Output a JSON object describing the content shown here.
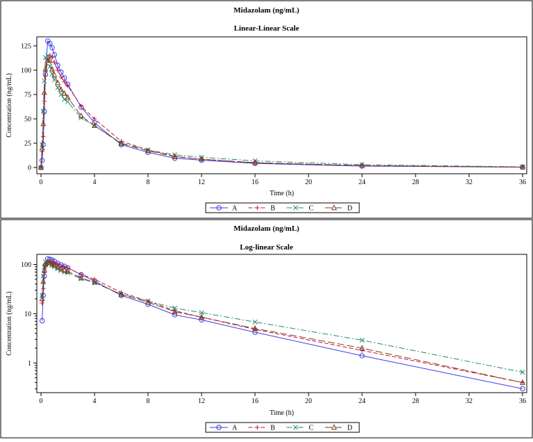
{
  "colors": {
    "A": "#3c3ce6",
    "B": "#c8102e",
    "C": "#1f8a70",
    "D": "#7a3b1a"
  },
  "chart_data": [
    {
      "type": "line",
      "title": "Midazolam (ng/mL)",
      "subtitle": "Linear-Linear Scale",
      "xlabel": "Time (h)",
      "ylabel": "Concentration (ng/mL)",
      "xscale": "linear",
      "yscale": "linear",
      "xlim": [
        0,
        36
      ],
      "ylim": [
        0,
        130
      ],
      "xticks": [
        0,
        4,
        8,
        12,
        16,
        20,
        24,
        28,
        32,
        36
      ],
      "yticks": [
        0,
        25,
        50,
        75,
        100,
        125
      ],
      "grid": false,
      "legend": "bottom-center",
      "series": [
        {
          "name": "A",
          "marker": "circle",
          "line": "solid",
          "x": [
            0,
            0.083,
            0.167,
            0.25,
            0.333,
            0.5,
            0.667,
            0.833,
            1,
            1.25,
            1.5,
            1.75,
            2,
            3,
            4,
            6,
            8,
            10,
            12,
            16,
            24,
            36
          ],
          "y": [
            0,
            7.2,
            23.5,
            57.5,
            96,
            130,
            127.5,
            123,
            116,
            105,
            98,
            92,
            85.5,
            62,
            46,
            23.4,
            15.5,
            9.5,
            7.5,
            4.2,
            1.4,
            0.3
          ]
        },
        {
          "name": "B",
          "marker": "plus",
          "line": "dash",
          "x": [
            0,
            0.083,
            0.167,
            0.25,
            0.333,
            0.5,
            0.667,
            0.833,
            1,
            1.25,
            1.5,
            1.75,
            2,
            3,
            4,
            6,
            8,
            10,
            12,
            16,
            24,
            36
          ],
          "y": [
            0,
            16.5,
            32,
            68,
            94,
            110,
            115,
            113,
            108,
            100,
            93,
            88,
            84,
            63,
            50,
            27,
            18,
            11.5,
            8.5,
            4.8,
            1.8,
            0.4
          ]
        },
        {
          "name": "C",
          "marker": "x",
          "line": "dashdot",
          "x": [
            0,
            0.083,
            0.167,
            0.25,
            0.333,
            0.5,
            0.667,
            0.833,
            1,
            1.25,
            1.5,
            1.75,
            2,
            3,
            4,
            6,
            8,
            10,
            12,
            16,
            24,
            36
          ],
          "y": [
            0,
            23.5,
            58,
            89,
            113,
            115,
            104,
            96,
            90,
            82,
            75,
            70,
            67.5,
            51,
            43,
            25,
            18,
            13,
            10.5,
            6.8,
            2.9,
            0.65
          ]
        },
        {
          "name": "D",
          "marker": "triangle",
          "line": "longdash",
          "x": [
            0,
            0.083,
            0.167,
            0.25,
            0.333,
            0.5,
            0.667,
            0.833,
            1,
            1.25,
            1.5,
            1.75,
            2,
            3,
            4,
            6,
            8,
            10,
            12,
            16,
            24,
            36
          ],
          "y": [
            0,
            20,
            45,
            77,
            101,
            110,
            110,
            101,
            95,
            87,
            80,
            76,
            72,
            53,
            43,
            24.5,
            17,
            11,
            8.5,
            5,
            2,
            0.4
          ]
        }
      ]
    },
    {
      "type": "line",
      "title": "Midazolam (ng/mL)",
      "subtitle": "Log-linear Scale",
      "xlabel": "Time (h)",
      "ylabel": "Concentration (ng/mL)",
      "xscale": "linear",
      "yscale": "log",
      "xlim": [
        0,
        36
      ],
      "ylim": [
        0.25,
        160
      ],
      "xticks": [
        0,
        4,
        8,
        12,
        16,
        20,
        24,
        28,
        32,
        36
      ],
      "yticks": [
        1,
        10,
        100
      ],
      "grid": false,
      "legend": "bottom-center",
      "series": [
        {
          "name": "A",
          "marker": "circle",
          "line": "solid",
          "x": [
            0.083,
            0.167,
            0.25,
            0.333,
            0.5,
            0.667,
            0.833,
            1,
            1.25,
            1.5,
            1.75,
            2,
            3,
            4,
            6,
            8,
            10,
            12,
            16,
            24,
            36
          ],
          "y": [
            7.2,
            23.5,
            57.5,
            96,
            130,
            127.5,
            123,
            116,
            105,
            98,
            92,
            85.5,
            62,
            46,
            23.4,
            15.5,
            9.5,
            7.5,
            4.2,
            1.4,
            0.3
          ]
        },
        {
          "name": "B",
          "marker": "plus",
          "line": "dash",
          "x": [
            0.083,
            0.167,
            0.25,
            0.333,
            0.5,
            0.667,
            0.833,
            1,
            1.25,
            1.5,
            1.75,
            2,
            3,
            4,
            6,
            8,
            10,
            12,
            16,
            24,
            36
          ],
          "y": [
            16.5,
            32,
            68,
            94,
            110,
            115,
            113,
            108,
            100,
            93,
            88,
            84,
            63,
            50,
            27,
            18,
            11.5,
            8.5,
            4.8,
            1.8,
            0.4
          ]
        },
        {
          "name": "C",
          "marker": "x",
          "line": "dashdot",
          "x": [
            0.083,
            0.167,
            0.25,
            0.333,
            0.5,
            0.667,
            0.833,
            1,
            1.25,
            1.5,
            1.75,
            2,
            3,
            4,
            6,
            8,
            10,
            12,
            16,
            24,
            36
          ],
          "y": [
            23.5,
            58,
            89,
            113,
            115,
            104,
            96,
            90,
            82,
            75,
            70,
            67.5,
            51,
            43,
            25,
            18,
            13,
            10.5,
            6.8,
            2.9,
            0.65
          ]
        },
        {
          "name": "D",
          "marker": "triangle",
          "line": "longdash",
          "x": [
            0.083,
            0.167,
            0.25,
            0.333,
            0.5,
            0.667,
            0.833,
            1,
            1.25,
            1.5,
            1.75,
            2,
            3,
            4,
            6,
            8,
            10,
            12,
            16,
            24,
            36
          ],
          "y": [
            20,
            45,
            77,
            101,
            110,
            110,
            101,
            95,
            87,
            80,
            76,
            72,
            53,
            43,
            24.5,
            17,
            11,
            8.5,
            5,
            2,
            0.4
          ]
        }
      ]
    }
  ]
}
